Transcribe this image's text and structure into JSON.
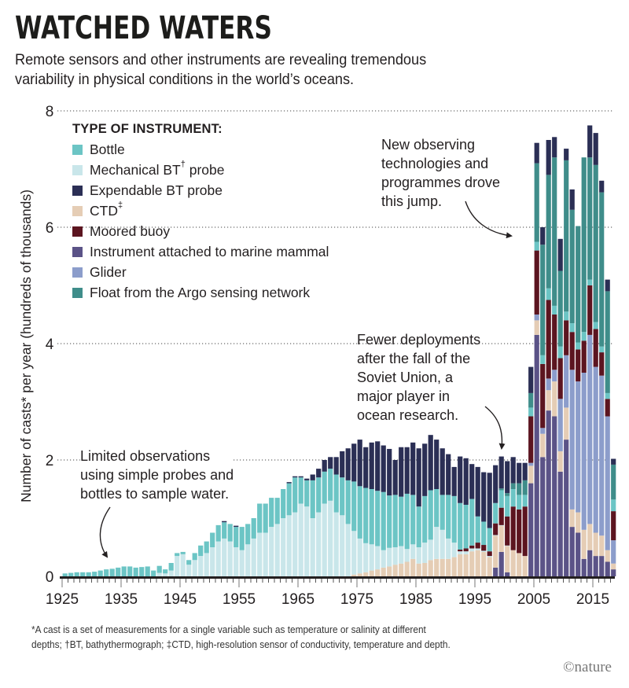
{
  "header": {
    "title": "WATCHED WATERS",
    "subtitle": "Remote sensors and other instruments are revealing tremendous variability in physical conditions in the world’s oceans."
  },
  "legend": {
    "title": "TYPE OF INSTRUMENT:",
    "items": [
      {
        "key": "bottle",
        "label": "Bottle",
        "sup": "",
        "color": "#6cc5c5"
      },
      {
        "key": "mech_bt",
        "label": "Mechanical BT",
        "sup": "†",
        "suffix": " probe",
        "color": "#c9e6ea"
      },
      {
        "key": "xbt",
        "label": "Expendable BT probe",
        "sup": "",
        "color": "#2b2f55"
      },
      {
        "key": "ctd",
        "label": "CTD",
        "sup": "‡",
        "color": "#e5cdb5"
      },
      {
        "key": "moored",
        "label": "Moored buoy",
        "sup": "",
        "color": "#5c1520"
      },
      {
        "key": "mammal",
        "label": "Instrument attached to marine mammal",
        "sup": "",
        "color": "#5b5387"
      },
      {
        "key": "glider",
        "label": "Glider",
        "sup": "",
        "color": "#8c9dcb"
      },
      {
        "key": "argo",
        "label": "Float from the Argo sensing network",
        "sup": "",
        "color": "#3f8d8a"
      }
    ]
  },
  "annotations": [
    {
      "id": "early",
      "text": [
        "Limited observations",
        "using simple probes and",
        "bottles to sample water."
      ]
    },
    {
      "id": "soviet",
      "text": [
        "Fewer deployments",
        "after the fall of the",
        "Soviet Union, a",
        "major player in",
        "ocean research."
      ]
    },
    {
      "id": "jump",
      "text": [
        "New observing",
        "technologies and",
        "programmes drove",
        "this jump."
      ]
    }
  ],
  "footnote": {
    "line1": "*A cast is a set of measurements for a single variable such as temperature or salinity at different",
    "line2": "depths; †BT, bathythermograph; ‡CTD, high-resolution sensor of conductivity, temperature and depth."
  },
  "credit": "©nature",
  "chart_data": {
    "type": "bar",
    "stacked": true,
    "title": "WATCHED WATERS",
    "xlabel": "",
    "ylabel": "Number of casts* per year (hundreds of thousands)",
    "ylim": [
      0,
      8
    ],
    "yticks": [
      0,
      2,
      4,
      6,
      8
    ],
    "xticks": [
      1925,
      1935,
      1945,
      1955,
      1965,
      1975,
      1985,
      1995,
      2005,
      2015
    ],
    "grid": "horizontal dotted",
    "legend_position": "top-left",
    "stack_order": [
      "mammal",
      "ctd",
      "mech_bt",
      "glider",
      "moored",
      "bottle",
      "argo",
      "xbt"
    ],
    "x": [
      1925,
      1926,
      1927,
      1928,
      1929,
      1930,
      1931,
      1932,
      1933,
      1934,
      1935,
      1936,
      1937,
      1938,
      1939,
      1940,
      1941,
      1942,
      1943,
      1944,
      1945,
      1946,
      1947,
      1948,
      1949,
      1950,
      1951,
      1952,
      1953,
      1954,
      1955,
      1956,
      1957,
      1958,
      1959,
      1960,
      1961,
      1962,
      1963,
      1964,
      1965,
      1966,
      1967,
      1968,
      1969,
      1970,
      1971,
      1972,
      1973,
      1974,
      1975,
      1976,
      1977,
      1978,
      1979,
      1980,
      1981,
      1982,
      1983,
      1984,
      1985,
      1986,
      1987,
      1988,
      1989,
      1990,
      1991,
      1992,
      1993,
      1994,
      1995,
      1996,
      1997,
      1998,
      1999,
      2000,
      2001,
      2002,
      2003,
      2004,
      2005,
      2006,
      2007,
      2008,
      2009,
      2010,
      2011,
      2012,
      2013,
      2014,
      2015,
      2016,
      2017,
      2018
    ],
    "series": [
      {
        "name": "Instrument attached to marine mammal",
        "key": "mammal",
        "values": [
          0,
          0,
          0,
          0,
          0,
          0,
          0,
          0,
          0,
          0,
          0,
          0,
          0,
          0,
          0,
          0,
          0,
          0,
          0,
          0,
          0,
          0,
          0,
          0,
          0,
          0,
          0,
          0,
          0,
          0,
          0,
          0,
          0,
          0,
          0,
          0,
          0,
          0,
          0,
          0,
          0,
          0,
          0,
          0,
          0,
          0,
          0,
          0,
          0,
          0,
          0,
          0,
          0,
          0,
          0,
          0,
          0,
          0,
          0,
          0,
          0,
          0,
          0,
          0,
          0,
          0,
          0,
          0,
          0,
          0,
          0,
          0,
          0,
          0.15,
          0.42,
          0.07,
          0,
          0,
          0,
          1.6,
          4.15,
          2.05,
          2.85,
          2.75,
          1.8,
          2.35,
          0.85,
          0.75,
          0.3,
          0.45,
          0.35,
          0.35,
          0.25,
          0.12
        ]
      },
      {
        "name": "CTD",
        "key": "ctd",
        "values": [
          0,
          0,
          0,
          0,
          0,
          0,
          0,
          0,
          0,
          0,
          0,
          0,
          0,
          0,
          0,
          0,
          0,
          0,
          0,
          0,
          0,
          0,
          0,
          0,
          0,
          0,
          0,
          0,
          0,
          0,
          0,
          0,
          0,
          0,
          0,
          0,
          0,
          0,
          0,
          0,
          0,
          0,
          0,
          0,
          0,
          0,
          0,
          0,
          0,
          0.03,
          0.05,
          0.07,
          0.1,
          0.12,
          0.15,
          0.17,
          0.2,
          0.22,
          0.25,
          0.3,
          0.22,
          0.23,
          0.28,
          0.3,
          0.3,
          0.3,
          0.33,
          0.38,
          0.38,
          0.43,
          0.45,
          0.42,
          0.33,
          0.55,
          0.45,
          0.45,
          0.45,
          0.4,
          0.35,
          0.3,
          0.25,
          0.4,
          0.35,
          0.6,
          0.35,
          0.55,
          0.3,
          0.35,
          0.5,
          0.45,
          0.4,
          0.35,
          0.2,
          0.1
        ]
      },
      {
        "name": "Mechanical BT probe",
        "key": "mech_bt",
        "values": [
          0,
          0,
          0,
          0,
          0,
          0,
          0,
          0,
          0,
          0,
          0,
          0,
          0,
          0,
          0,
          0,
          0.06,
          0.05,
          0.1,
          0.35,
          0.38,
          0.2,
          0.28,
          0.35,
          0.4,
          0.5,
          0.6,
          0.65,
          0.6,
          0.5,
          0.45,
          0.55,
          0.65,
          0.75,
          0.75,
          0.85,
          0.9,
          1.0,
          1.05,
          1.1,
          1.25,
          1.2,
          1.0,
          1.1,
          1.25,
          1.3,
          1.1,
          1.05,
          0.9,
          0.75,
          0.6,
          0.5,
          0.45,
          0.4,
          0.3,
          0.32,
          0.3,
          0.3,
          0.22,
          0.25,
          0.28,
          0.35,
          0.35,
          0.55,
          0.5,
          0.35,
          0.25,
          0.05,
          0.05,
          0.05,
          0.03,
          0.02,
          0.02,
          0.01,
          0.01,
          0.01,
          0,
          0,
          0,
          0,
          0,
          0,
          0,
          0,
          0,
          0,
          0,
          0,
          0,
          0,
          0,
          0,
          0,
          0
        ]
      },
      {
        "name": "Glider",
        "key": "glider",
        "values": [
          0,
          0,
          0,
          0,
          0,
          0,
          0,
          0,
          0,
          0,
          0,
          0,
          0,
          0,
          0,
          0,
          0,
          0,
          0,
          0,
          0,
          0,
          0,
          0,
          0,
          0,
          0,
          0,
          0,
          0,
          0,
          0,
          0,
          0,
          0,
          0,
          0,
          0,
          0,
          0,
          0,
          0,
          0,
          0,
          0,
          0,
          0,
          0,
          0,
          0,
          0,
          0,
          0,
          0,
          0,
          0,
          0,
          0,
          0,
          0,
          0,
          0,
          0,
          0,
          0,
          0,
          0,
          0,
          0,
          0,
          0,
          0,
          0,
          0,
          0,
          0,
          0,
          0,
          0,
          0.05,
          0.1,
          0.1,
          0.2,
          0.2,
          0.9,
          0.9,
          2.4,
          2.25,
          2.7,
          3.25,
          2.85,
          2.75,
          2.3,
          0.4
        ]
      },
      {
        "name": "Moored buoy",
        "key": "moored",
        "values": [
          0,
          0,
          0,
          0,
          0,
          0,
          0,
          0,
          0,
          0,
          0,
          0,
          0,
          0,
          0,
          0,
          0,
          0,
          0,
          0,
          0,
          0,
          0,
          0,
          0,
          0,
          0,
          0,
          0,
          0,
          0,
          0,
          0,
          0,
          0,
          0,
          0,
          0,
          0,
          0,
          0,
          0,
          0,
          0,
          0,
          0,
          0,
          0,
          0,
          0,
          0,
          0,
          0,
          0,
          0,
          0,
          0,
          0,
          0,
          0,
          0,
          0,
          0,
          0,
          0,
          0,
          0,
          0.03,
          0.05,
          0.05,
          0.1,
          0.1,
          0.08,
          0.2,
          0.3,
          0.5,
          0.75,
          0.75,
          0.85,
          0.8,
          1.1,
          1.1,
          1.35,
          0.95,
          0.7,
          0.6,
          0.65,
          0.55,
          0.55,
          0.85,
          0.65,
          0.4,
          0.3,
          0.5
        ]
      },
      {
        "name": "Bottle",
        "key": "bottle",
        "values": [
          0.05,
          0.06,
          0.07,
          0.07,
          0.07,
          0.08,
          0.1,
          0.12,
          0.13,
          0.15,
          0.17,
          0.17,
          0.15,
          0.16,
          0.17,
          0.1,
          0.12,
          0.07,
          0.13,
          0.05,
          0.04,
          0.08,
          0.12,
          0.18,
          0.2,
          0.25,
          0.28,
          0.28,
          0.3,
          0.35,
          0.4,
          0.35,
          0.35,
          0.5,
          0.5,
          0.5,
          0.45,
          0.5,
          0.55,
          0.6,
          0.45,
          0.45,
          0.65,
          0.6,
          0.55,
          0.55,
          0.65,
          0.65,
          0.75,
          0.85,
          0.9,
          0.95,
          0.95,
          0.95,
          1.0,
          0.9,
          0.9,
          0.85,
          0.95,
          0.85,
          0.7,
          0.8,
          0.85,
          0.65,
          0.6,
          0.75,
          0.8,
          0.8,
          0.75,
          0.8,
          0.45,
          0.4,
          0.4,
          0.35,
          0.3,
          0.35,
          0.3,
          0.25,
          0.2,
          0.15,
          0.15,
          0.15,
          0.2,
          0.15,
          0.2,
          0.15,
          0.15,
          0.12,
          0.15,
          0.1,
          0.12,
          0.1,
          0.1,
          0.2
        ]
      },
      {
        "name": "Float from the Argo sensing network",
        "key": "argo",
        "values": [
          0,
          0,
          0,
          0,
          0,
          0,
          0,
          0,
          0,
          0,
          0,
          0,
          0,
          0,
          0,
          0,
          0,
          0,
          0,
          0,
          0,
          0,
          0,
          0,
          0,
          0,
          0,
          0,
          0,
          0,
          0,
          0,
          0,
          0,
          0,
          0,
          0,
          0,
          0,
          0,
          0,
          0,
          0,
          0,
          0,
          0,
          0,
          0,
          0,
          0,
          0,
          0,
          0,
          0,
          0,
          0,
          0,
          0,
          0,
          0,
          0,
          0,
          0,
          0,
          0,
          0,
          0,
          0,
          0,
          0,
          0,
          0,
          0,
          0,
          0.03,
          0.05,
          0.1,
          0.2,
          0.25,
          0.25,
          1.35,
          1.9,
          1.95,
          2.55,
          1.3,
          2.6,
          1.95,
          2.0,
          3.0,
          2.1,
          2.7,
          2.65,
          1.75,
          0.6
        ]
      },
      {
        "name": "Expendable BT probe",
        "key": "xbt",
        "values": [
          0,
          0,
          0,
          0,
          0,
          0,
          0,
          0,
          0,
          0,
          0,
          0,
          0,
          0,
          0,
          0,
          0,
          0,
          0,
          0,
          0,
          0,
          0,
          0,
          0,
          0,
          0,
          0.02,
          0,
          0.02,
          0,
          0,
          0,
          0,
          0,
          0,
          0,
          0,
          0.02,
          0.02,
          0.02,
          0.03,
          0.1,
          0.15,
          0.2,
          0.2,
          0.3,
          0.45,
          0.55,
          0.65,
          0.8,
          0.7,
          0.8,
          0.85,
          0.8,
          0.8,
          0.6,
          0.85,
          0.8,
          0.9,
          1.0,
          0.9,
          0.95,
          0.85,
          0.8,
          0.7,
          0.5,
          0.8,
          0.8,
          0.6,
          0.85,
          0.85,
          0.95,
          0.65,
          0.55,
          0.55,
          0.45,
          0.35,
          0.3,
          0.45,
          0.35,
          0.3,
          0.6,
          0.35,
          0.55,
          0.2,
          0.35,
          0.0,
          0.0,
          0.55,
          0.55,
          0.2,
          0.2,
          0.1
        ]
      }
    ]
  }
}
